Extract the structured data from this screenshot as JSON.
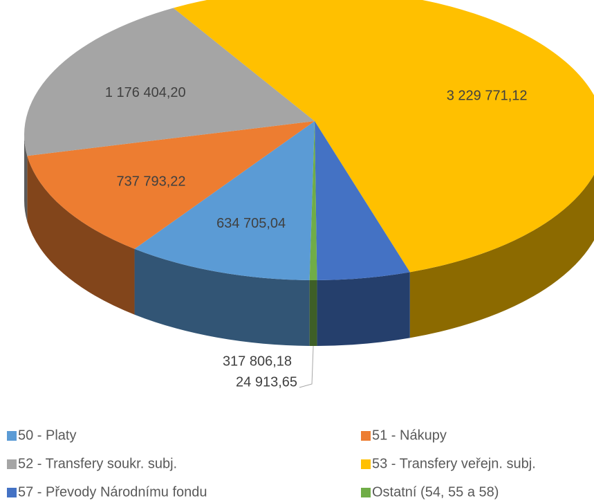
{
  "chart_data": {
    "type": "pie3d",
    "categories": [
      "50 - Platy",
      "51 - Nákupy",
      "52 - Transfery soukr. subj.",
      "53 - Transfery veřejn. subj.",
      "57 - Převody Národnímu fondu",
      "Ostatní (54, 55 a 58)"
    ],
    "values": [
      634705.04,
      737793.22,
      1176404.2,
      3229771.12,
      317806.18,
      24913.65
    ],
    "value_labels": [
      "634 705,04",
      "737 793,22",
      "1 176 404,20",
      "3 229 771,12",
      "317 806,18",
      "24 913,65"
    ],
    "colors": [
      "#5b9bd5",
      "#ed7d31",
      "#a5a5a5",
      "#ffc000",
      "#4472c4",
      "#70ad47"
    ],
    "legend": "bottom"
  }
}
